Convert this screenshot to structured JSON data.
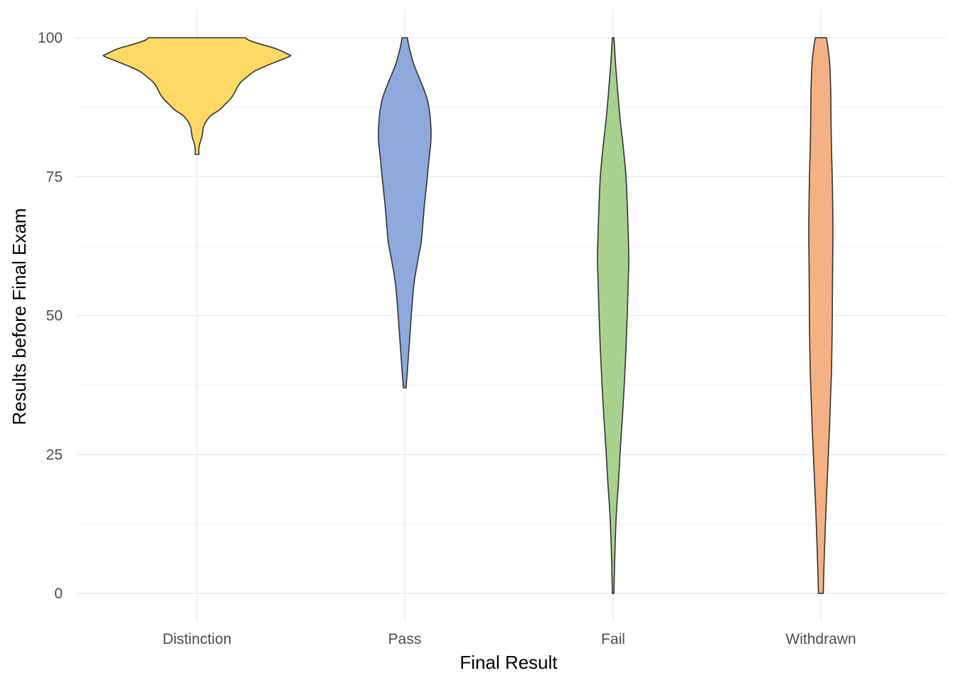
{
  "chart_data": {
    "type": "violin",
    "title": "",
    "xlabel": "Final Result",
    "ylabel": "Results before Final Exam",
    "ylim": [
      0,
      100
    ],
    "y_ticks": [
      0,
      25,
      50,
      75,
      100
    ],
    "y_tick_labels": [
      "0",
      "25",
      "50",
      "75",
      "100"
    ],
    "categories": [
      "Distinction",
      "Pass",
      "Fail",
      "Withdrawn"
    ],
    "grid": true,
    "legend": "none",
    "series": [
      {
        "category": "Distinction",
        "color": "#FFD966",
        "min": 79,
        "max": 100,
        "density_profile": [
          [
            79,
            0.02
          ],
          [
            80,
            0.02
          ],
          [
            81,
            0.03
          ],
          [
            82,
            0.05
          ],
          [
            83,
            0.06
          ],
          [
            84,
            0.07
          ],
          [
            85,
            0.1
          ],
          [
            86,
            0.15
          ],
          [
            87,
            0.24
          ],
          [
            88,
            0.3
          ],
          [
            89,
            0.36
          ],
          [
            90,
            0.4
          ],
          [
            91,
            0.43
          ],
          [
            92,
            0.47
          ],
          [
            93,
            0.54
          ],
          [
            94,
            0.62
          ],
          [
            95,
            0.75
          ],
          [
            96,
            0.9
          ],
          [
            96.7,
            1.0
          ],
          [
            97,
            0.98
          ],
          [
            98,
            0.85
          ],
          [
            99,
            0.65
          ],
          [
            99.6,
            0.55
          ],
          [
            100,
            0.52
          ]
        ]
      },
      {
        "category": "Pass",
        "color": "#8EA9DB",
        "min": 37,
        "max": 100,
        "density_profile": [
          [
            37,
            0.05
          ],
          [
            40,
            0.1
          ],
          [
            44,
            0.16
          ],
          [
            48,
            0.22
          ],
          [
            52,
            0.28
          ],
          [
            56,
            0.36
          ],
          [
            60,
            0.5
          ],
          [
            63,
            0.62
          ],
          [
            66,
            0.68
          ],
          [
            70,
            0.75
          ],
          [
            74,
            0.84
          ],
          [
            78,
            0.92
          ],
          [
            82,
            1.0
          ],
          [
            86,
            0.96
          ],
          [
            89,
            0.85
          ],
          [
            92,
            0.62
          ],
          [
            95,
            0.36
          ],
          [
            98,
            0.18
          ],
          [
            100,
            0.1
          ]
        ]
      },
      {
        "category": "Fail",
        "color": "#A9D18E",
        "min": 0,
        "max": 100,
        "density_profile": [
          [
            0,
            0.05
          ],
          [
            4,
            0.08
          ],
          [
            8,
            0.12
          ],
          [
            14,
            0.2
          ],
          [
            20,
            0.34
          ],
          [
            26,
            0.46
          ],
          [
            32,
            0.6
          ],
          [
            38,
            0.72
          ],
          [
            44,
            0.82
          ],
          [
            50,
            0.9
          ],
          [
            56,
            0.96
          ],
          [
            60,
            1.0
          ],
          [
            65,
            0.96
          ],
          [
            70,
            0.9
          ],
          [
            75,
            0.82
          ],
          [
            80,
            0.66
          ],
          [
            85,
            0.46
          ],
          [
            90,
            0.3
          ],
          [
            95,
            0.16
          ],
          [
            100,
            0.05
          ]
        ]
      },
      {
        "category": "Withdrawn",
        "color": "#F4B183",
        "min": 0,
        "max": 100,
        "density_profile": [
          [
            0,
            0.2
          ],
          [
            5,
            0.26
          ],
          [
            10,
            0.34
          ],
          [
            15,
            0.42
          ],
          [
            20,
            0.52
          ],
          [
            25,
            0.62
          ],
          [
            30,
            0.72
          ],
          [
            35,
            0.8
          ],
          [
            40,
            0.88
          ],
          [
            45,
            0.92
          ],
          [
            50,
            0.95
          ],
          [
            55,
            0.96
          ],
          [
            60,
            0.98
          ],
          [
            65,
            1.0
          ],
          [
            70,
            0.98
          ],
          [
            75,
            0.94
          ],
          [
            80,
            0.88
          ],
          [
            85,
            0.84
          ],
          [
            90,
            0.82
          ],
          [
            95,
            0.74
          ],
          [
            98,
            0.6
          ],
          [
            100,
            0.46
          ]
        ]
      }
    ]
  }
}
